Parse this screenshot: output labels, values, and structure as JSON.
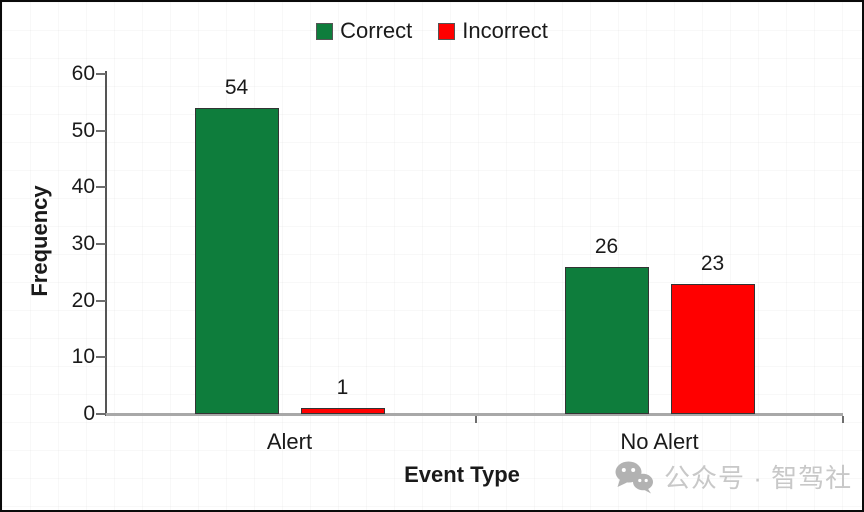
{
  "chart_data": {
    "type": "bar",
    "categories": [
      "Alert",
      "No Alert"
    ],
    "series": [
      {
        "name": "Correct",
        "color": "#0e7d3c",
        "values": [
          54,
          26
        ]
      },
      {
        "name": "Incorrect",
        "color": "#ff0000",
        "values": [
          1,
          23
        ]
      }
    ],
    "title": "",
    "xlabel": "Event Type",
    "ylabel": "Frequency",
    "ylim": [
      0,
      60
    ],
    "yticks": [
      0,
      10,
      20,
      30,
      40,
      50,
      60
    ],
    "grid": false,
    "legend_position": "top",
    "data_labels": true
  },
  "watermark": {
    "icon": "wechat-icon",
    "text": "公众号 · 智驾社"
  }
}
